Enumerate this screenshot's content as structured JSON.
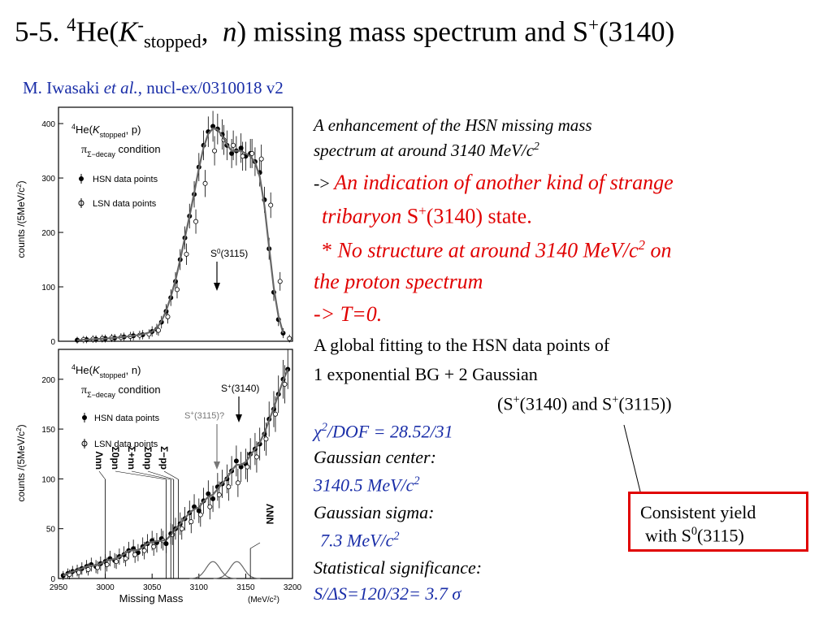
{
  "slide": {
    "title_num": "5-5.",
    "title_sup4": "4",
    "title_he": "He(",
    "title_k": "K",
    "title_minus": "-",
    "title_stopped": "stopped",
    "title_comma": ",",
    "title_n": "n",
    "title_rest": ") missing mass spectrum and S",
    "title_plus": "+",
    "title_end": "(3140)",
    "author_name": "M. Iwasaki ",
    "author_etal": "et al.",
    "author_ref": ", nucl-ex/0310018 v2"
  },
  "text": {
    "l1": "A enhancement of the HSN missing mass",
    "l2": "spectrum at around 3140 MeV/c",
    "l2sup": "2",
    "l3a": "-> ",
    "l3b": "An indication of another kind of strange",
    "l4a": "tribaryon ",
    "l4b": "S",
    "l4sup": "+",
    "l4c": "(3140) state.",
    "l5star": "*",
    "l5": " No structure at around 3140 MeV/c",
    "l5sup": "2",
    "l5end": " on",
    "l6": "the proton spectrum",
    "l7": "-> T=0.",
    "l8": "A global fitting to the HSN data points of",
    "l9": "1 exponential BG + 2 Gaussian",
    "l10a": "(S",
    "l10sup": "+",
    "l10b": "(3140) and S",
    "l10sup2": "+",
    "l10c": "(3115))",
    "l11chi": "χ",
    "l11sup": "2",
    "l11": "/DOF = 28.52/31",
    "l12": "Gaussian center:",
    "l13": "3140.5 MeV/c",
    "l13sup": "2",
    "l14": "Gaussian sigma:",
    "l15": "7.3 MeV/c",
    "l15sup": "2",
    "l16": "Statistical significance:",
    "l17a": "S/",
    "l17delta": "Δ",
    "l17b": "S=120/32= 3.7 ",
    "l17sigma": "σ"
  },
  "box": {
    "line1": "Consistent yield",
    "line2a": "with S",
    "line2sup": "0",
    "line2b": "(3115)"
  },
  "chart_data": [
    {
      "type": "scatter",
      "panel": "top",
      "title": "4He(K-stopped, p) πΣ-decay condition",
      "reaction_sup": "4",
      "reaction_main": "He(",
      "reaction_k": "K",
      "reaction_sub": "stopped",
      "reaction_end": ", p)",
      "condition_pi": "π",
      "condition_sub": "Σ−decay",
      "condition_word": " condition",
      "ylabel": "counts /(5MeV/c",
      "ylabel_sup": "2",
      "ylabel_end": ")",
      "ylim": [
        0,
        430
      ],
      "xlim": [
        2950,
        3200
      ],
      "yticks": [
        "0",
        "100",
        "200",
        "300",
        "400"
      ],
      "legend": [
        "HSN data points",
        "LSN data points"
      ],
      "annotation": "S0(3115)",
      "annotation_main": "S",
      "annotation_sup": "0",
      "annotation_end": "(3115)",
      "series": [
        {
          "name": "HSN data points",
          "x": [
            2970,
            2980,
            2990,
            3000,
            3010,
            3020,
            3030,
            3040,
            3050,
            3055,
            3060,
            3065,
            3070,
            3075,
            3080,
            3085,
            3090,
            3095,
            3100,
            3105,
            3110,
            3115,
            3120,
            3125,
            3130,
            3135,
            3140,
            3145,
            3150,
            3155,
            3160,
            3165,
            3170,
            3175,
            3180,
            3185,
            3190
          ],
          "y": [
            2,
            3,
            4,
            5,
            6,
            8,
            10,
            12,
            18,
            22,
            35,
            55,
            80,
            110,
            150,
            190,
            230,
            270,
            320,
            360,
            385,
            395,
            390,
            380,
            360,
            345,
            350,
            355,
            340,
            345,
            330,
            310,
            260,
            170,
            90,
            40,
            15
          ]
        },
        {
          "name": "LSN data points",
          "x": [
            2975,
            2985,
            2995,
            3005,
            3015,
            3025,
            3035,
            3045,
            3055,
            3065,
            3075,
            3085,
            3095,
            3105,
            3115,
            3125,
            3135,
            3145,
            3155,
            3165,
            3175,
            3185,
            3195
          ],
          "y": [
            3,
            4,
            5,
            6,
            7,
            9,
            11,
            13,
            20,
            45,
            95,
            160,
            220,
            290,
            350,
            370,
            360,
            340,
            345,
            335,
            250,
            110,
            5
          ]
        }
      ]
    },
    {
      "type": "scatter",
      "panel": "bottom",
      "title": "4He(K-stopped, n) πΣ-decay condition",
      "reaction_sup": "4",
      "reaction_main": "He(",
      "reaction_k": "K",
      "reaction_sub": "stopped",
      "reaction_end": ", n)",
      "condition_pi": "π",
      "condition_sub": "Σ−decay",
      "condition_word": " condition",
      "xlabel": "Missing Mass",
      "xunit": "(MeV/c",
      "xunit_sup": "2",
      "xunit_end": ")",
      "ylabel": "counts /(5MeV/c",
      "ylabel_sup": "2",
      "ylabel_end": ")",
      "ylim": [
        0,
        230
      ],
      "xlim": [
        2950,
        3200
      ],
      "xticks": [
        "2950",
        "3000",
        "3050",
        "3100",
        "3150",
        "3200"
      ],
      "yticks": [
        "0",
        "50",
        "100",
        "150",
        "200"
      ],
      "legend": [
        "HSN data points",
        "LSN data points"
      ],
      "annotations": [
        "S+(3140)",
        "S+(3115)?",
        "Λnn",
        "Σ0pn",
        "Σ+nn",
        "Σ0np",
        "Σ−pp",
        "ΛNN"
      ],
      "ann_s3140": [
        "S",
        "+",
        "(3140)"
      ],
      "ann_s3115": [
        "S",
        "+",
        "(3115)?"
      ],
      "thresholds": {
        "x": [
          3000,
          3065,
          3070,
          3073,
          3078
        ],
        "labels": [
          "Λnn",
          "Σ0pn",
          "Σ+nn",
          "Σ0np",
          "Σ−pp"
        ]
      },
      "threshold_right": "ΛNN",
      "series": [
        {
          "name": "HSN data points",
          "x": [
            2955,
            2960,
            2965,
            2970,
            2975,
            2980,
            2985,
            2990,
            2995,
            3000,
            3005,
            3010,
            3015,
            3020,
            3025,
            3030,
            3035,
            3040,
            3045,
            3050,
            3055,
            3060,
            3065,
            3070,
            3075,
            3080,
            3085,
            3090,
            3095,
            3100,
            3105,
            3110,
            3115,
            3120,
            3125,
            3130,
            3135,
            3140,
            3145,
            3150,
            3155,
            3160,
            3165,
            3170,
            3175,
            3180,
            3185,
            3190,
            3195
          ],
          "y": [
            3,
            5,
            7,
            8,
            10,
            12,
            14,
            12,
            15,
            17,
            20,
            18,
            22,
            24,
            28,
            30,
            26,
            32,
            35,
            38,
            36,
            40,
            35,
            45,
            50,
            55,
            60,
            66,
            72,
            68,
            78,
            85,
            80,
            92,
            95,
            100,
            108,
            118,
            112,
            115,
            125,
            130,
            135,
            145,
            160,
            170,
            185,
            200,
            210
          ]
        },
        {
          "name": "LSN data points",
          "x": [
            2960,
            2970,
            2980,
            2990,
            3000,
            3010,
            3020,
            3030,
            3040,
            3050,
            3060,
            3070,
            3080,
            3090,
            3100,
            3110,
            3120,
            3130,
            3140,
            3150,
            3160,
            3170,
            3180,
            3190
          ],
          "y": [
            4,
            6,
            9,
            11,
            14,
            17,
            20,
            24,
            28,
            32,
            38,
            44,
            50,
            57,
            64,
            72,
            84,
            92,
            96,
            112,
            122,
            140,
            165,
            195
          ]
        }
      ]
    }
  ]
}
